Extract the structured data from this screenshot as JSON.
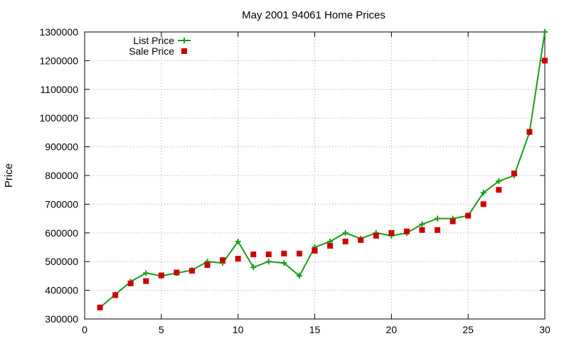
{
  "chart_data": {
    "type": "line",
    "title": "May 2001 94061 Home Prices",
    "xlabel": "",
    "ylabel": "Price",
    "xlim": [
      0,
      30
    ],
    "ylim": [
      300000,
      1300000
    ],
    "x_ticks": [
      0,
      5,
      10,
      15,
      20,
      25,
      30
    ],
    "y_ticks": [
      300000,
      400000,
      500000,
      600000,
      700000,
      800000,
      900000,
      1000000,
      1100000,
      1200000,
      1300000
    ],
    "grid": true,
    "legend_position": "top-left",
    "series": [
      {
        "name": "List Price",
        "style": "line+cross",
        "color": "#1a9c1a",
        "x": [
          1,
          2,
          3,
          4,
          5,
          6,
          7,
          8,
          9,
          10,
          11,
          12,
          13,
          14,
          15,
          16,
          17,
          18,
          19,
          20,
          21,
          22,
          23,
          24,
          25,
          26,
          27,
          28,
          29,
          30
        ],
        "values": [
          340000,
          385000,
          430000,
          460000,
          450000,
          460000,
          470000,
          500000,
          495000,
          570000,
          480000,
          500000,
          495000,
          450000,
          550000,
          570000,
          600000,
          580000,
          600000,
          590000,
          600000,
          630000,
          650000,
          650000,
          660000,
          740000,
          780000,
          800000,
          950000,
          1300000
        ]
      },
      {
        "name": "Sale Price",
        "style": "square",
        "color": "#cc0000",
        "x": [
          1,
          2,
          3,
          4,
          5,
          6,
          7,
          8,
          9,
          10,
          11,
          12,
          13,
          14,
          15,
          16,
          17,
          18,
          19,
          20,
          21,
          22,
          23,
          24,
          25,
          26,
          27,
          28,
          29,
          30
        ],
        "values": [
          340000,
          383000,
          424000,
          432000,
          452000,
          462000,
          468000,
          488000,
          505000,
          510000,
          525000,
          525000,
          528000,
          528000,
          538000,
          555000,
          570000,
          575000,
          590000,
          600000,
          605000,
          610000,
          610000,
          640000,
          660000,
          700000,
          750000,
          807000,
          952000,
          1200000
        ]
      }
    ]
  }
}
